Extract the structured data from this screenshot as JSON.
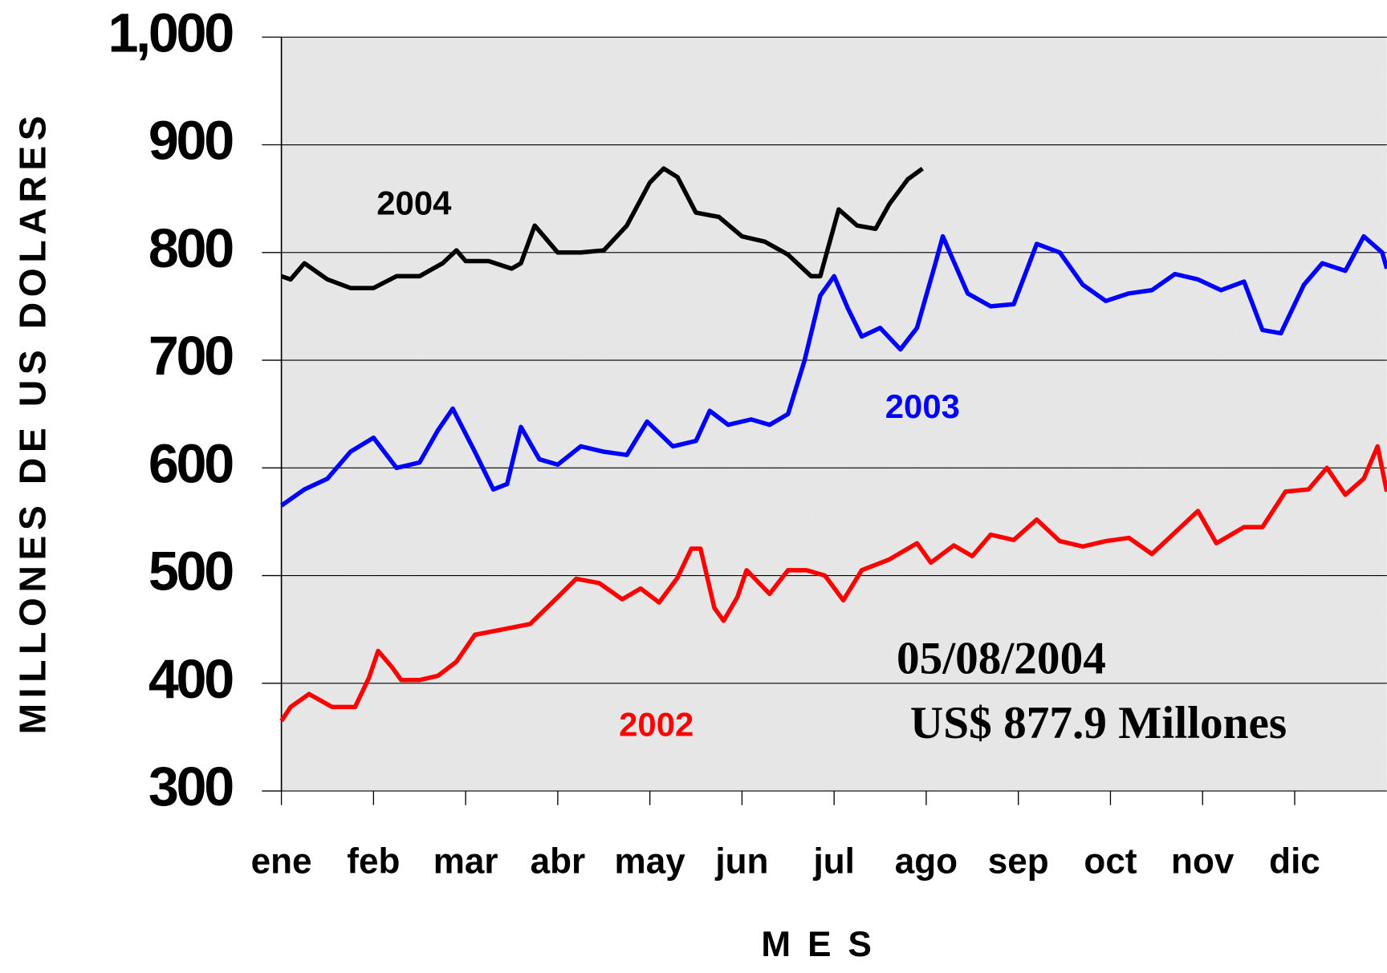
{
  "chart_data": {
    "type": "line",
    "y_label": "MILLONES DE US DOLARES",
    "x_label": "M E S",
    "annotations": [
      "05/08/2004",
      "US$ 877.9 Millones"
    ],
    "xlim": [
      0,
      12
    ],
    "xticks": [
      {
        "value": 0,
        "label": "ene"
      },
      {
        "value": 1,
        "label": "feb"
      },
      {
        "value": 2,
        "label": "mar"
      },
      {
        "value": 3,
        "label": "abr"
      },
      {
        "value": 4,
        "label": "may"
      },
      {
        "value": 5,
        "label": "jun"
      },
      {
        "value": 6,
        "label": "jul"
      },
      {
        "value": 7,
        "label": "ago"
      },
      {
        "value": 8,
        "label": "sep"
      },
      {
        "value": 9,
        "label": "oct"
      },
      {
        "value": 10,
        "label": "nov"
      },
      {
        "value": 11,
        "label": "dic"
      }
    ],
    "ylim": [
      300,
      1000
    ],
    "yticks": [
      300,
      400,
      500,
      600,
      700,
      800,
      900,
      {
        "value": 1000,
        "label": "1,000"
      }
    ],
    "grid": true,
    "series": [
      {
        "name": "2004",
        "color": "#000000",
        "x": [
          0,
          0.1,
          0.25,
          0.5,
          0.75,
          1.0,
          1.25,
          1.5,
          1.75,
          1.9,
          2.0,
          2.25,
          2.5,
          2.6,
          2.75,
          3.0,
          3.25,
          3.5,
          3.75,
          4.0,
          4.15,
          4.3,
          4.5,
          4.75,
          5.0,
          5.25,
          5.5,
          5.75,
          5.85,
          6.05,
          6.25,
          6.45,
          6.6,
          6.8,
          6.96
        ],
        "values": [
          778,
          775,
          790,
          775,
          767,
          767,
          778,
          778,
          790,
          802,
          792,
          792,
          785,
          790,
          825,
          800,
          800,
          802,
          825,
          865,
          878,
          870,
          837,
          833,
          815,
          810,
          798,
          778,
          778,
          840,
          825,
          822,
          845,
          868,
          877.9
        ]
      },
      {
        "name": "2003",
        "color": "#0000ff",
        "x": [
          0,
          0.25,
          0.5,
          0.75,
          1.0,
          1.25,
          1.5,
          1.7,
          1.86,
          2.1,
          2.3,
          2.45,
          2.6,
          2.8,
          3.0,
          3.25,
          3.5,
          3.75,
          3.97,
          4.25,
          4.5,
          4.65,
          4.85,
          5.1,
          5.3,
          5.5,
          5.68,
          5.85,
          6.0,
          6.15,
          6.3,
          6.5,
          6.72,
          6.9,
          7.1,
          7.18,
          7.45,
          7.7,
          7.95,
          8.2,
          8.45,
          8.7,
          8.95,
          9.2,
          9.45,
          9.7,
          9.95,
          10.2,
          10.45,
          10.65,
          10.85,
          11.1,
          11.3,
          11.55,
          11.75,
          11.95,
          12.0
        ],
        "values": [
          565,
          580,
          590,
          615,
          628,
          600,
          605,
          635,
          655,
          615,
          580,
          585,
          638,
          608,
          603,
          620,
          615,
          612,
          643,
          620,
          625,
          653,
          640,
          645,
          640,
          650,
          700,
          760,
          778,
          748,
          722,
          730,
          710,
          730,
          790,
          815,
          762,
          750,
          752,
          808,
          800,
          770,
          755,
          762,
          765,
          780,
          775,
          765,
          773,
          728,
          725,
          770,
          790,
          783,
          815,
          800,
          785
        ]
      },
      {
        "name": "2002",
        "color": "#ff0000",
        "x": [
          0,
          0.1,
          0.3,
          0.55,
          0.8,
          0.95,
          1.05,
          1.2,
          1.3,
          1.5,
          1.7,
          1.9,
          2.1,
          2.4,
          2.7,
          3.0,
          3.2,
          3.45,
          3.7,
          3.9,
          4.1,
          4.3,
          4.45,
          4.55,
          4.7,
          4.8,
          4.95,
          5.05,
          5.3,
          5.5,
          5.7,
          5.9,
          6.1,
          6.3,
          6.6,
          6.9,
          7.05,
          7.3,
          7.5,
          7.7,
          7.95,
          8.2,
          8.45,
          8.7,
          8.95,
          9.2,
          9.45,
          9.7,
          9.95,
          10.15,
          10.45,
          10.65,
          10.9,
          11.15,
          11.35,
          11.55,
          11.75,
          11.9,
          12.0
        ],
        "values": [
          365,
          378,
          390,
          378,
          378,
          405,
          430,
          415,
          403,
          403,
          407,
          420,
          445,
          450,
          455,
          480,
          497,
          493,
          478,
          488,
          475,
          498,
          525,
          525,
          470,
          458,
          480,
          505,
          483,
          505,
          505,
          500,
          477,
          505,
          515,
          530,
          512,
          528,
          518,
          538,
          533,
          552,
          532,
          527,
          532,
          535,
          520,
          540,
          560,
          530,
          545,
          545,
          578,
          580,
          600,
          575,
          590,
          620,
          578
        ]
      }
    ]
  }
}
